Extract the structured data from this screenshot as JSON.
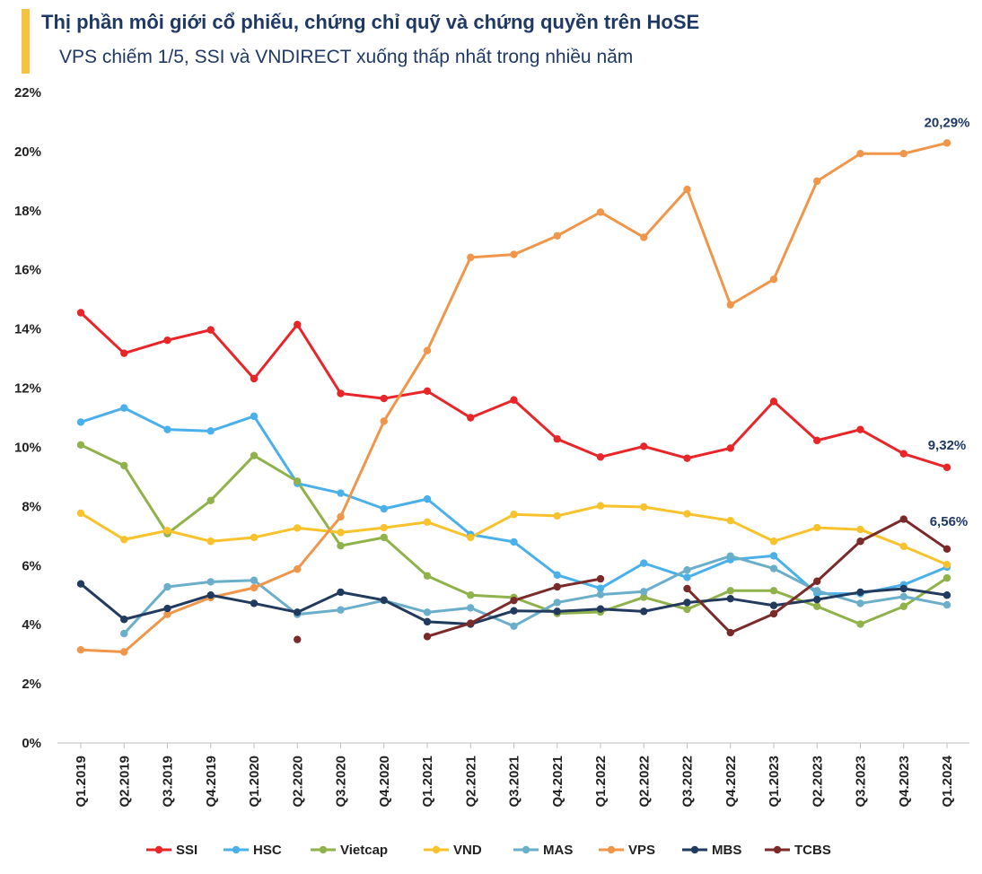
{
  "header": {
    "title": "Thị phần môi giới cổ phiếu, chứng chỉ quỹ và chứng quyền trên HoSE",
    "subtitle": "VPS chiếm 1/5, SSI và VNDIRECT xuống thấp nhất trong nhiều năm",
    "accent_color": "#f5c242"
  },
  "chart_data": {
    "type": "line",
    "title": "Thị phần môi giới cổ phiếu, chứng chỉ quỹ và chứng quyền trên HoSE",
    "subtitle": "VPS chiếm 1/5, SSI và VNDIRECT xuống thấp nhất trong nhiều năm",
    "xlabel": "",
    "ylabel": "",
    "ylim": [
      0,
      22
    ],
    "yticks": [
      "0%",
      "2%",
      "4%",
      "6%",
      "8%",
      "10%",
      "12%",
      "14%",
      "16%",
      "18%",
      "20%",
      "22%"
    ],
    "grid": false,
    "legend_position": "bottom",
    "categories": [
      "Q1.2019",
      "Q2.2019",
      "Q3.2019",
      "Q4.2019",
      "Q1.2020",
      "Q2.2020",
      "Q3.2020",
      "Q4.2020",
      "Q1.2021",
      "Q2.2021",
      "Q3.2021",
      "Q4.2021",
      "Q1.2022",
      "Q2.2022",
      "Q3.2022",
      "Q4.2022",
      "Q1.2023",
      "Q2.2023",
      "Q3.2023",
      "Q4.2023",
      "Q1.2024"
    ],
    "series": [
      {
        "name": "SSI",
        "color": "#e8262a",
        "values": [
          14.55,
          13.18,
          13.62,
          13.97,
          12.32,
          14.15,
          11.82,
          11.65,
          11.9,
          11.0,
          11.6,
          10.28,
          9.67,
          10.03,
          9.63,
          9.97,
          11.55,
          10.23,
          10.6,
          9.78,
          9.32
        ]
      },
      {
        "name": "HSC",
        "color": "#4ab0ea",
        "values": [
          10.85,
          11.33,
          10.6,
          10.55,
          11.05,
          8.78,
          8.45,
          7.92,
          8.25,
          7.05,
          6.8,
          5.68,
          5.23,
          6.08,
          5.6,
          6.2,
          6.33,
          5.05,
          5.05,
          5.35,
          5.95
        ]
      },
      {
        "name": "Vietcap",
        "color": "#8fb24b",
        "values": [
          10.08,
          9.38,
          7.08,
          8.2,
          9.72,
          8.85,
          6.67,
          6.95,
          5.65,
          5.0,
          4.92,
          4.38,
          4.43,
          4.93,
          4.52,
          5.15,
          5.15,
          4.62,
          4.02,
          4.62,
          5.58
        ]
      },
      {
        "name": "VND",
        "color": "#f7c22b",
        "values": [
          7.77,
          6.88,
          7.18,
          6.82,
          6.95,
          7.27,
          7.12,
          7.28,
          7.47,
          6.95,
          7.73,
          7.68,
          8.02,
          7.98,
          7.75,
          7.52,
          6.82,
          7.28,
          7.22,
          6.65,
          6.03
        ]
      },
      {
        "name": "MAS",
        "color": "#6aaec9",
        "values": [
          null,
          3.7,
          5.28,
          5.45,
          5.5,
          4.35,
          4.5,
          4.82,
          4.42,
          4.57,
          3.95,
          4.75,
          5.02,
          5.12,
          5.85,
          6.32,
          5.9,
          5.15,
          4.72,
          4.95,
          4.67
        ]
      },
      {
        "name": "VPS",
        "color": "#f0964a",
        "values": [
          3.15,
          3.08,
          4.35,
          4.92,
          5.25,
          5.88,
          7.65,
          10.88,
          13.27,
          16.42,
          16.52,
          17.15,
          17.95,
          17.1,
          18.72,
          14.82,
          15.68,
          19.0,
          19.93,
          19.93,
          20.29
        ]
      },
      {
        "name": "MBS",
        "color": "#223a5e",
        "values": [
          5.38,
          4.18,
          4.55,
          5.0,
          4.72,
          4.42,
          5.1,
          4.83,
          4.1,
          4.02,
          4.47,
          4.45,
          4.53,
          4.45,
          4.75,
          4.88,
          4.65,
          4.85,
          5.1,
          5.22,
          5.0
        ]
      },
      {
        "name": "TCBS",
        "color": "#7b2a2a",
        "values": [
          null,
          null,
          null,
          null,
          null,
          3.5,
          null,
          null,
          3.6,
          4.05,
          4.82,
          5.28,
          5.55,
          null,
          5.22,
          3.73,
          4.37,
          5.47,
          6.82,
          7.57,
          6.56
        ]
      }
    ],
    "annotations": [
      {
        "series": "VPS",
        "category": "Q1.2024",
        "text": "20,29%"
      },
      {
        "series": "SSI",
        "category": "Q1.2024",
        "text": "9,32%"
      },
      {
        "series": "TCBS",
        "category": "Q1.2024",
        "text": "6,56%"
      }
    ]
  }
}
